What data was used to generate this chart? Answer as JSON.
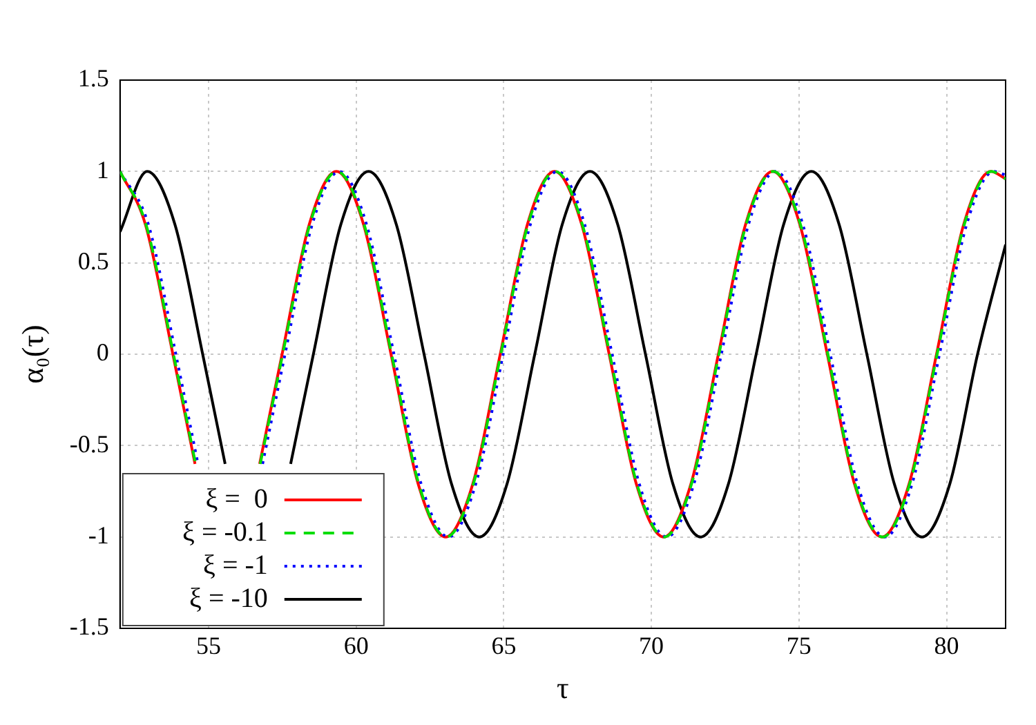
{
  "chart_data": {
    "type": "line",
    "xlabel": "τ",
    "ylabel": "α₀(τ)",
    "xlim": [
      52,
      82
    ],
    "ylim": [
      -1.5,
      1.5
    ],
    "xticks": [
      55,
      60,
      65,
      70,
      75,
      80
    ],
    "yticks": [
      -1.5,
      -1,
      -0.5,
      0,
      0.5,
      1,
      1.5
    ],
    "grid": true,
    "legend": "bottom left",
    "marker": "none",
    "series": [
      {
        "name": "ξ =  0",
        "color": "#ff0000",
        "line_style": "solid",
        "x": [
          52,
          52.86,
          53.79,
          54.54,
          55.64,
          56.73,
          57.49,
          58.41,
          59.33,
          60.25,
          61.18,
          62.1,
          63.03,
          63.95,
          64.88,
          65.8,
          66.72,
          67.64,
          68.57,
          69.49,
          70.42,
          71.34,
          72.27,
          73.19,
          74.11,
          75.03,
          75.96,
          76.88,
          77.81,
          78.73,
          79.66,
          80.58,
          81.5,
          82
        ],
        "values": [
          1,
          0.71,
          0,
          -0.6,
          null,
          -0.6,
          0,
          0.71,
          1,
          0.71,
          0,
          -0.71,
          -1,
          -0.71,
          0,
          0.71,
          1,
          0.71,
          0,
          -0.71,
          -1,
          -0.71,
          0,
          0.71,
          1,
          0.71,
          0,
          -0.71,
          -1,
          -0.71,
          0,
          0.71,
          1,
          0.96
        ]
      },
      {
        "name": "ξ = -0.1",
        "color": "#00dd00",
        "line_style": "dashed",
        "x": [
          52,
          52.88,
          53.81,
          54.56,
          55.66,
          56.75,
          57.51,
          58.43,
          59.35,
          60.27,
          61.2,
          62.12,
          63.05,
          63.97,
          64.9,
          65.82,
          66.74,
          67.66,
          68.59,
          69.51,
          70.44,
          71.36,
          72.29,
          73.21,
          74.13,
          75.05,
          75.98,
          76.9,
          77.83,
          78.75,
          79.68,
          80.6,
          81.52,
          82
        ],
        "values": [
          1,
          0.71,
          0,
          -0.6,
          null,
          -0.6,
          0,
          0.71,
          1,
          0.71,
          0,
          -0.71,
          -1,
          -0.71,
          0,
          0.71,
          1,
          0.71,
          0,
          -0.71,
          -1,
          -0.71,
          0,
          0.71,
          1,
          0.71,
          0,
          -0.71,
          -1,
          -0.71,
          0,
          0.71,
          1,
          0.96
        ]
      },
      {
        "name": "ξ = -1",
        "color": "#0000ff",
        "line_style": "dotted",
        "x": [
          52,
          52.96,
          53.89,
          54.64,
          55.74,
          56.83,
          57.59,
          58.51,
          59.43,
          60.35,
          61.28,
          62.2,
          63.13,
          64.05,
          64.98,
          65.9,
          66.82,
          67.74,
          68.67,
          69.59,
          70.52,
          71.44,
          72.37,
          73.29,
          74.21,
          75.13,
          76.06,
          76.98,
          77.91,
          78.83,
          79.76,
          80.68,
          81.6,
          82
        ],
        "values": [
          1,
          0.71,
          0,
          -0.6,
          null,
          -0.6,
          0,
          0.71,
          1,
          0.71,
          0,
          -0.71,
          -1,
          -0.71,
          0,
          0.71,
          1,
          0.71,
          0,
          -0.71,
          -1,
          -0.71,
          0,
          0.71,
          1,
          0.71,
          0,
          -0.71,
          -1,
          -0.71,
          0,
          0.71,
          1,
          0.98
        ]
      },
      {
        "name": "ξ = -10",
        "color": "#000000",
        "line_style": "solid",
        "x": [
          52,
          52.92,
          53.86,
          54.8,
          55.56,
          56.67,
          57.78,
          58.55,
          59.48,
          60.42,
          61.36,
          62.3,
          63.23,
          64.17,
          65.11,
          66.05,
          66.98,
          67.92,
          68.86,
          69.8,
          70.73,
          71.67,
          72.61,
          73.55,
          74.48,
          75.42,
          76.36,
          77.3,
          78.23,
          79.17,
          80.11,
          81.05,
          82
        ],
        "values": [
          0.67,
          1,
          0.71,
          0,
          -0.6,
          null,
          -0.6,
          0,
          0.71,
          1,
          0.71,
          0,
          -0.71,
          -1,
          -0.71,
          0,
          0.71,
          1,
          0.71,
          0,
          -0.71,
          -1,
          -0.71,
          0,
          0.71,
          1,
          0.71,
          0,
          -0.71,
          -1,
          -0.71,
          0,
          0.6
        ]
      }
    ]
  }
}
